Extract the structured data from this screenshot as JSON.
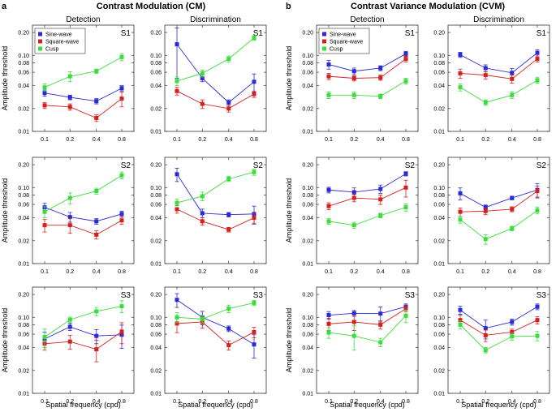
{
  "figure": {
    "panel_a_letter": "a",
    "panel_b_letter": "b",
    "cm_title": "Contrast Modulation (CM)",
    "cvm_title": "Contrast Variance Modulation (CVM)",
    "col_titles": [
      "Detection",
      "Discrimination",
      "Detection",
      "Discrimination"
    ],
    "ylabel": "Amplitude threshold",
    "xlabel": "Spatial frequency (cpd)",
    "subjects": [
      "S1",
      "S2",
      "S3"
    ],
    "colors": {
      "sine": "#2a2ad6",
      "square": "#d62020",
      "cusp": "#3ddc3d",
      "axis": "#333333"
    }
  },
  "chart_data": {
    "type": "line",
    "x": [
      0.1,
      0.2,
      0.4,
      0.8
    ],
    "x_tick_labels": [
      "0.1",
      "0.2",
      "0.4",
      "0.8"
    ],
    "y_scale": "log",
    "ylim": [
      0.01,
      0.25
    ],
    "y_tick_labels": [
      "0.01",
      "0.02",
      "0.04",
      "0.06",
      "0.08",
      "0.10",
      "0.20"
    ],
    "y_tick_values": [
      0.01,
      0.02,
      0.04,
      0.06,
      0.08,
      0.1,
      0.2
    ],
    "legend": [
      "Sine-wave",
      "Square-wave",
      "Cusp"
    ],
    "legend_location": "upper-left of first panel in each of panel a and panel b",
    "panels": [
      {
        "condition": "CM",
        "task": "Detection",
        "subject": "S1",
        "series": [
          {
            "name": "Sine-wave",
            "values": [
              0.032,
              0.028,
              0.025,
              0.037
            ],
            "err": [
              0.003,
              0.002,
              0.002,
              0.003
            ]
          },
          {
            "name": "Square-wave",
            "values": [
              0.022,
              0.021,
              0.015,
              0.027
            ],
            "err": [
              0.002,
              0.002,
              0.0015,
              0.006
            ]
          },
          {
            "name": "Cusp",
            "values": [
              0.038,
              0.053,
              0.062,
              0.095
            ],
            "err": [
              0.004,
              0.008,
              0.004,
              0.01
            ]
          }
        ]
      },
      {
        "condition": "CM",
        "task": "Discrimination",
        "subject": "S1",
        "series": [
          {
            "name": "Sine-wave",
            "values": [
              0.14,
              0.05,
              0.024,
              0.045
            ],
            "err": [
              0.09,
              0.005,
              0.002,
              0.012
            ]
          },
          {
            "name": "Square-wave",
            "values": [
              0.034,
              0.023,
              0.02,
              0.031
            ],
            "err": [
              0.004,
              0.003,
              0.002,
              0.003
            ]
          },
          {
            "name": "Cusp",
            "values": [
              0.046,
              0.058,
              0.09,
              0.17
            ],
            "err": [
              0.006,
              0.006,
              0.008,
              0.012
            ]
          }
        ]
      },
      {
        "condition": "CVM",
        "task": "Detection",
        "subject": "S1",
        "series": [
          {
            "name": "Sine-wave",
            "values": [
              0.076,
              0.062,
              0.068,
              0.105
            ],
            "err": [
              0.01,
              0.006,
              0.005,
              0.008
            ]
          },
          {
            "name": "Square-wave",
            "values": [
              0.053,
              0.05,
              0.051,
              0.09
            ],
            "err": [
              0.005,
              0.004,
              0.004,
              0.008
            ]
          },
          {
            "name": "Cusp",
            "values": [
              0.03,
              0.03,
              0.029,
              0.046
            ],
            "err": [
              0.003,
              0.003,
              0.002,
              0.004
            ]
          }
        ]
      },
      {
        "condition": "CVM",
        "task": "Discrimination",
        "subject": "S1",
        "series": [
          {
            "name": "Sine-wave",
            "values": [
              0.102,
              0.068,
              0.059,
              0.108
            ],
            "err": [
              0.008,
              0.007,
              0.008,
              0.01
            ]
          },
          {
            "name": "Square-wave",
            "values": [
              0.058,
              0.055,
              0.049,
              0.09
            ],
            "err": [
              0.008,
              0.006,
              0.006,
              0.008
            ]
          },
          {
            "name": "Cusp",
            "values": [
              0.038,
              0.024,
              0.03,
              0.047
            ],
            "err": [
              0.004,
              0.002,
              0.003,
              0.004
            ]
          }
        ]
      },
      {
        "condition": "CM",
        "task": "Detection",
        "subject": "S2",
        "series": [
          {
            "name": "Sine-wave",
            "values": [
              0.055,
              0.041,
              0.036,
              0.045
            ],
            "err": [
              0.007,
              0.006,
              0.003,
              0.004
            ]
          },
          {
            "name": "Square-wave",
            "values": [
              0.032,
              0.032,
              0.024,
              0.037
            ],
            "err": [
              0.006,
              0.007,
              0.003,
              0.004
            ]
          },
          {
            "name": "Cusp",
            "values": [
              0.048,
              0.073,
              0.09,
              0.145
            ],
            "err": [
              0.008,
              0.012,
              0.008,
              0.015
            ]
          }
        ]
      },
      {
        "condition": "CM",
        "task": "Discrimination",
        "subject": "S2",
        "series": [
          {
            "name": "Sine-wave",
            "values": [
              0.15,
              0.046,
              0.044,
              0.045
            ],
            "err": [
              0.03,
              0.006,
              0.003,
              0.012
            ]
          },
          {
            "name": "Square-wave",
            "values": [
              0.052,
              0.036,
              0.028,
              0.04
            ],
            "err": [
              0.006,
              0.004,
              0.002,
              0.006
            ]
          },
          {
            "name": "Cusp",
            "values": [
              0.063,
              0.077,
              0.13,
              0.16
            ],
            "err": [
              0.008,
              0.01,
              0.01,
              0.015
            ]
          }
        ]
      },
      {
        "condition": "CVM",
        "task": "Detection",
        "subject": "S2",
        "series": [
          {
            "name": "Sine-wave",
            "values": [
              0.093,
              0.087,
              0.096,
              0.152
            ],
            "err": [
              0.008,
              0.012,
              0.012,
              0.01
            ]
          },
          {
            "name": "Square-wave",
            "values": [
              0.057,
              0.073,
              0.07,
              0.1
            ],
            "err": [
              0.006,
              0.008,
              0.01,
              0.025
            ]
          },
          {
            "name": "Cusp",
            "values": [
              0.036,
              0.032,
              0.043,
              0.055
            ],
            "err": [
              0.003,
              0.003,
              0.003,
              0.006
            ]
          }
        ]
      },
      {
        "condition": "CVM",
        "task": "Discrimination",
        "subject": "S2",
        "series": [
          {
            "name": "Sine-wave",
            "values": [
              0.084,
              0.055,
              0.073,
              0.093
            ],
            "err": [
              0.015,
              0.004,
              0.004,
              0.02
            ]
          },
          {
            "name": "Square-wave",
            "values": [
              0.048,
              0.049,
              0.052,
              0.09
            ],
            "err": [
              0.006,
              0.005,
              0.004,
              0.015
            ]
          },
          {
            "name": "Cusp",
            "values": [
              0.038,
              0.021,
              0.029,
              0.05
            ],
            "err": [
              0.004,
              0.003,
              0.002,
              0.005
            ]
          }
        ]
      },
      {
        "condition": "CM",
        "task": "Detection",
        "subject": "S3",
        "series": [
          {
            "name": "Sine-wave",
            "values": [
              0.052,
              0.075,
              0.057,
              0.059
            ],
            "err": [
              0.012,
              0.008,
              0.012,
              0.02
            ]
          },
          {
            "name": "Square-wave",
            "values": [
              0.045,
              0.048,
              0.038,
              0.065
            ],
            "err": [
              0.008,
              0.01,
              0.012,
              0.02
            ]
          },
          {
            "name": "Cusp",
            "values": [
              0.055,
              0.093,
              0.12,
              0.14
            ],
            "err": [
              0.015,
              0.008,
              0.015,
              0.025
            ]
          }
        ]
      },
      {
        "condition": "CM",
        "task": "Discrimination",
        "subject": "S3",
        "series": [
          {
            "name": "Sine-wave",
            "values": [
              0.17,
              0.1,
              0.071,
              0.044
            ],
            "err": [
              0.035,
              0.02,
              0.006,
              0.015
            ]
          },
          {
            "name": "Square-wave",
            "values": [
              0.083,
              0.087,
              0.043,
              0.064
            ],
            "err": [
              0.02,
              0.015,
              0.006,
              0.01
            ]
          },
          {
            "name": "Cusp",
            "values": [
              0.1,
              0.095,
              0.13,
              0.155
            ],
            "err": [
              0.015,
              0.01,
              0.015,
              0.012
            ]
          }
        ]
      },
      {
        "condition": "CVM",
        "task": "Detection",
        "subject": "S3",
        "series": [
          {
            "name": "Sine-wave",
            "values": [
              0.107,
              0.113,
              0.112,
              0.138
            ],
            "err": [
              0.012,
              0.01,
              0.025,
              0.012
            ]
          },
          {
            "name": "Square-wave",
            "values": [
              0.082,
              0.087,
              0.08,
              0.13
            ],
            "err": [
              0.015,
              0.02,
              0.01,
              0.012
            ]
          },
          {
            "name": "Cusp",
            "values": [
              0.063,
              0.057,
              0.047,
              0.105
            ],
            "err": [
              0.01,
              0.02,
              0.006,
              0.02
            ]
          }
        ]
      },
      {
        "condition": "CVM",
        "task": "Discrimination",
        "subject": "S3",
        "series": [
          {
            "name": "Sine-wave",
            "values": [
              0.125,
              0.072,
              0.087,
              0.138
            ],
            "err": [
              0.015,
              0.02,
              0.008,
              0.012
            ]
          },
          {
            "name": "Square-wave",
            "values": [
              0.092,
              0.058,
              0.064,
              0.092
            ],
            "err": [
              0.015,
              0.01,
              0.006,
              0.01
            ]
          },
          {
            "name": "Cusp",
            "values": [
              0.08,
              0.037,
              0.056,
              0.057
            ],
            "err": [
              0.01,
              0.003,
              0.006,
              0.008
            ]
          }
        ]
      }
    ]
  }
}
